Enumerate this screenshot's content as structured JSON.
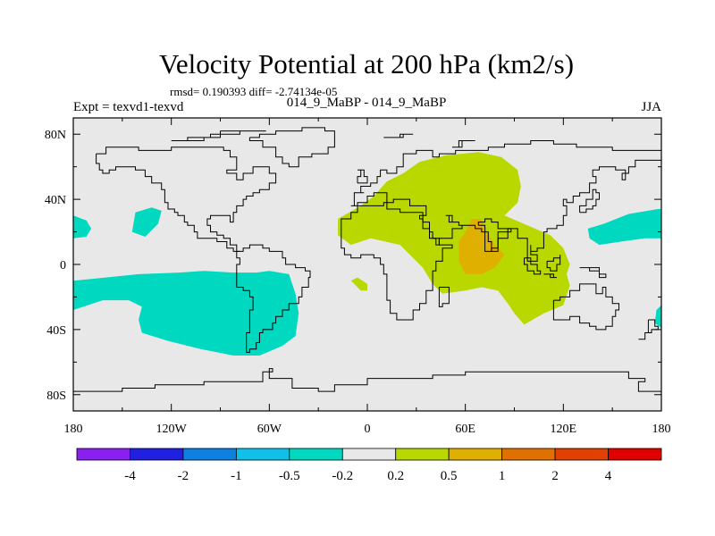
{
  "chart_data": {
    "type": "heatmap",
    "title": "Velocity Potential at 200 hPa (km2/s)",
    "stats_label": "rmsd= 0.190393 diff= -2.74134e-05",
    "left_label": "Expt = texvd1-texvd",
    "center_label": "014_9_MaBP - 014_9_MaBP",
    "right_label": "JJA",
    "xlim": [
      -180,
      180
    ],
    "ylim": [
      -90,
      90
    ],
    "x_ticks": [
      {
        "value": -180,
        "label": "180"
      },
      {
        "value": -120,
        "label": "120W"
      },
      {
        "value": -60,
        "label": "60W"
      },
      {
        "value": 0,
        "label": "0"
      },
      {
        "value": 60,
        "label": "60E"
      },
      {
        "value": 120,
        "label": "120E"
      },
      {
        "value": 180,
        "label": "180"
      }
    ],
    "y_ticks": [
      {
        "value": 80,
        "label": "80N"
      },
      {
        "value": 40,
        "label": "40N"
      },
      {
        "value": 0,
        "label": "0"
      },
      {
        "value": -40,
        "label": "40S"
      },
      {
        "value": -80,
        "label": "80S"
      }
    ],
    "colorbar": {
      "colors": [
        "#8a20f0",
        "#2020e0",
        "#1080e0",
        "#10c0e8",
        "#00d8c0",
        "#e8e8e8",
        "#b8d800",
        "#e0b000",
        "#e07000",
        "#e04000",
        "#e00000"
      ],
      "labels": [
        "-4",
        "-2",
        "-1",
        "-0.5",
        "-0.2",
        "0.2",
        "0.5",
        "1",
        "2",
        "4"
      ]
    },
    "regions": [
      {
        "level": "-0.5 to -0.2",
        "color": "#00d8c0",
        "points": [
          [
            -180,
            -10
          ],
          [
            -160,
            -8
          ],
          [
            -140,
            -6
          ],
          [
            -115,
            -5
          ],
          [
            -100,
            -4
          ],
          [
            -82,
            -5
          ],
          [
            -68,
            -5
          ],
          [
            -60,
            -4
          ],
          [
            -48,
            -6
          ],
          [
            -44,
            -18
          ],
          [
            -42,
            -30
          ],
          [
            -44,
            -44
          ],
          [
            -52,
            -50
          ],
          [
            -66,
            -56
          ],
          [
            -82,
            -56
          ],
          [
            -102,
            -52
          ],
          [
            -122,
            -47
          ],
          [
            -138,
            -42
          ],
          [
            -140,
            -34
          ],
          [
            -138,
            -26
          ],
          [
            -146,
            -22
          ],
          [
            -162,
            -22
          ],
          [
            -174,
            -26
          ],
          [
            -180,
            -28
          ]
        ]
      },
      {
        "level": "-0.5 to -0.2",
        "color": "#00d8c0",
        "points": [
          [
            -180,
            30
          ],
          [
            -172,
            27
          ],
          [
            -169,
            22
          ],
          [
            -172,
            17
          ],
          [
            -180,
            16
          ]
        ]
      },
      {
        "level": "-0.5 to -0.2",
        "color": "#00d8c0",
        "points": [
          [
            -142,
            32
          ],
          [
            -132,
            35
          ],
          [
            -126,
            33
          ],
          [
            -128,
            25
          ],
          [
            -136,
            17
          ],
          [
            -144,
            20
          ]
        ]
      },
      {
        "level": "-0.5 to -0.2",
        "color": "#00d8c0",
        "points": [
          [
            135,
            22
          ],
          [
            145,
            25
          ],
          [
            160,
            31
          ],
          [
            178,
            34
          ],
          [
            180,
            34
          ],
          [
            180,
            16
          ],
          [
            170,
            16
          ],
          [
            155,
            14
          ],
          [
            142,
            12
          ],
          [
            136,
            16
          ]
        ]
      },
      {
        "level": "-0.5 to -0.2",
        "color": "#00d8c0",
        "points": [
          [
            180,
            -25
          ],
          [
            177,
            -28
          ],
          [
            176,
            -36
          ],
          [
            180,
            -39
          ]
        ]
      },
      {
        "level": "0.2 to 0.5",
        "color": "#b8d800",
        "points": [
          [
            -18,
            28
          ],
          [
            -4,
            36
          ],
          [
            4,
            42
          ],
          [
            12,
            51
          ],
          [
            22,
            56
          ],
          [
            32,
            63
          ],
          [
            48,
            67
          ],
          [
            68,
            69
          ],
          [
            82,
            66
          ],
          [
            92,
            58
          ],
          [
            94,
            48
          ],
          [
            92,
            38
          ],
          [
            84,
            30
          ],
          [
            98,
            24
          ],
          [
            112,
            18
          ],
          [
            120,
            10
          ],
          [
            124,
            0
          ],
          [
            122,
            -6
          ],
          [
            124,
            -13
          ],
          [
            120,
            -25
          ],
          [
            108,
            -30
          ],
          [
            96,
            -37
          ],
          [
            90,
            -30
          ],
          [
            86,
            -24
          ],
          [
            80,
            -16
          ],
          [
            70,
            -14
          ],
          [
            60,
            -16
          ],
          [
            46,
            -18
          ],
          [
            40,
            -12
          ],
          [
            34,
            -2
          ],
          [
            20,
            12
          ],
          [
            2,
            16
          ],
          [
            -10,
            12
          ],
          [
            -18,
            18
          ]
        ]
      },
      {
        "level": "0.2 to 0.5",
        "color": "#b8d800",
        "points": [
          [
            -10,
            -10
          ],
          [
            -4,
            -16
          ],
          [
            0,
            -16
          ],
          [
            0,
            -12
          ],
          [
            -6,
            -8
          ]
        ]
      },
      {
        "level": "0.5 to 1",
        "color": "#e0b000",
        "points": [
          [
            56,
            2
          ],
          [
            56,
            14
          ],
          [
            60,
            20
          ],
          [
            64,
            28
          ],
          [
            70,
            28
          ],
          [
            72,
            22
          ],
          [
            78,
            12
          ],
          [
            84,
            6
          ],
          [
            78,
            -2
          ],
          [
            70,
            -6
          ],
          [
            60,
            -6
          ]
        ]
      }
    ]
  }
}
